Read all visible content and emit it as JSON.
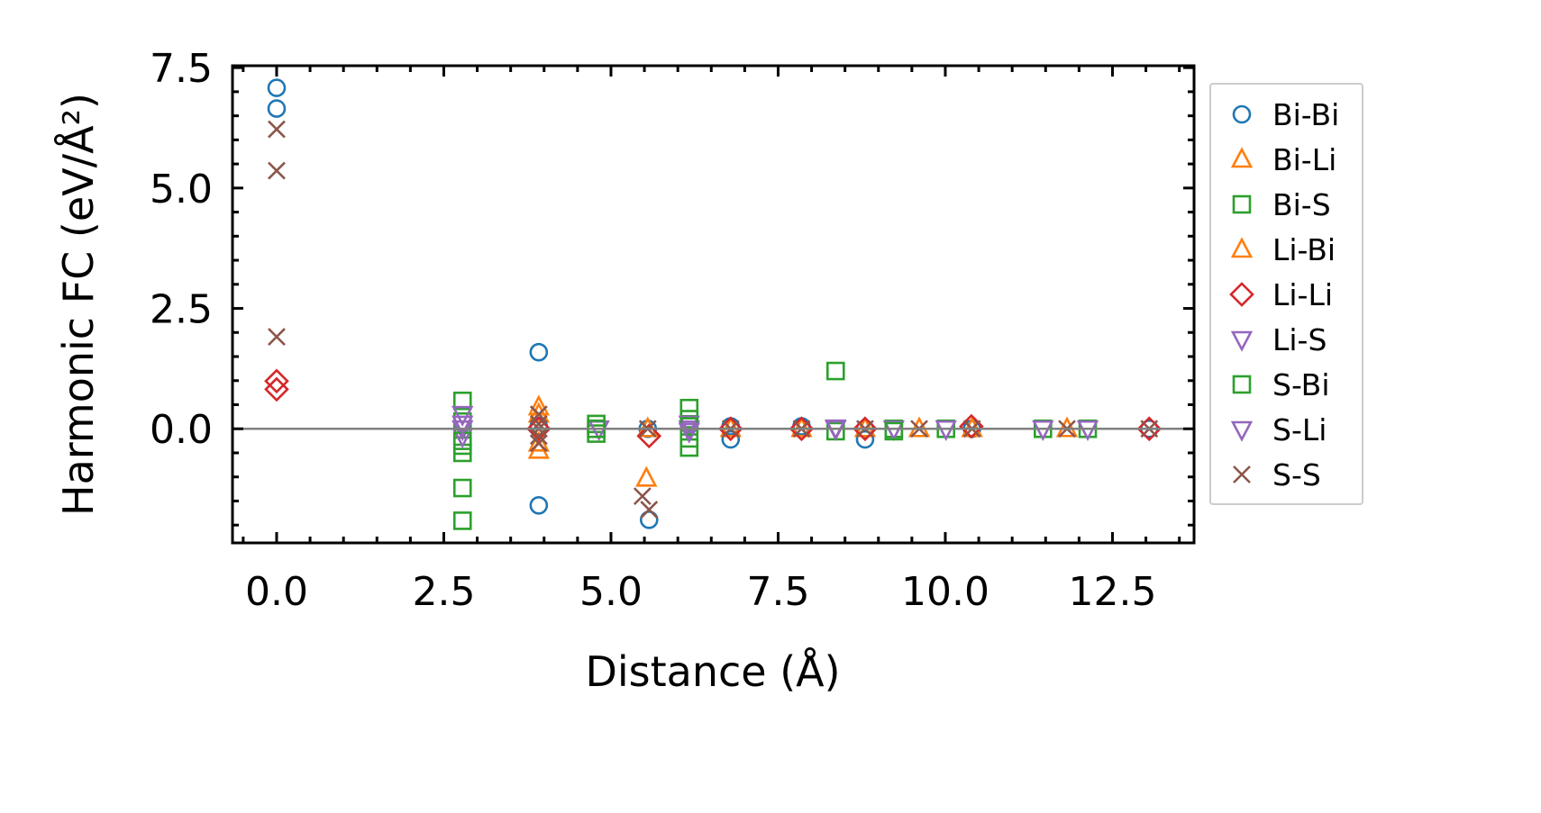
{
  "chart_data": {
    "type": "scatter",
    "title": "",
    "xlabel": "Distance (Å)",
    "ylabel": "Harmonic FC (eV/Å²)",
    "xlim": [
      -0.66,
      13.72
    ],
    "ylim": [
      -2.37,
      7.54
    ],
    "xticks": [
      0.0,
      2.5,
      5.0,
      7.5,
      10.0,
      12.5
    ],
    "xtick_labels": [
      "0.0",
      "2.5",
      "5.0",
      "7.5",
      "10.0",
      "12.5"
    ],
    "yticks": [
      0.0,
      2.5,
      5.0,
      7.5
    ],
    "ytick_labels": [
      "0.0",
      "2.5",
      "5.0",
      "7.5"
    ],
    "minor_tick_step": 0.5,
    "grid": false,
    "zero_line": {
      "y": 0,
      "color": "#808080"
    },
    "legend_position": "outside-right",
    "series": [
      {
        "name": "Bi-Bi",
        "marker": "circle",
        "color": "#1f77b4",
        "points": [
          [
            0,
            7.08
          ],
          [
            0,
            6.65
          ],
          [
            3.92,
            1.59
          ],
          [
            3.92,
            -1.59
          ],
          [
            3.92,
            0.05
          ],
          [
            5.57,
            -1.89
          ],
          [
            5.55,
            0.0
          ],
          [
            6.79,
            -0.22
          ],
          [
            6.79,
            0.05
          ],
          [
            7.85,
            0.05
          ],
          [
            8.8,
            -0.22
          ],
          [
            8.8,
            0.0
          ],
          [
            10.4,
            0.0
          ],
          [
            13.05,
            0.0
          ]
        ]
      },
      {
        "name": "Bi-Li",
        "marker": "triangle-up",
        "color": "#ff7f0e",
        "points": [
          [
            3.92,
            0.45
          ],
          [
            3.92,
            -0.45
          ],
          [
            5.53,
            -1.03
          ],
          [
            5.55,
            0.0
          ],
          [
            7.85,
            0.0
          ],
          [
            9.61,
            0.0
          ],
          [
            11.82,
            0.0
          ]
        ]
      },
      {
        "name": "Bi-S",
        "marker": "square",
        "color": "#2ca02c",
        "points": [
          [
            2.78,
            0.58
          ],
          [
            2.78,
            0.15
          ],
          [
            2.78,
            -0.35
          ],
          [
            2.78,
            -0.5
          ],
          [
            2.78,
            -1.23
          ],
          [
            2.78,
            -1.91
          ],
          [
            4.78,
            0.1
          ],
          [
            4.78,
            -0.1
          ],
          [
            6.17,
            0.43
          ],
          [
            6.17,
            0.2
          ],
          [
            6.17,
            -0.2
          ],
          [
            6.17,
            -0.39
          ],
          [
            8.36,
            1.2
          ],
          [
            8.36,
            -0.05
          ],
          [
            9.23,
            0.0
          ],
          [
            10.01,
            0.0
          ],
          [
            11.46,
            0.0
          ],
          [
            12.13,
            0.0
          ]
        ]
      },
      {
        "name": "Li-Bi",
        "marker": "triangle-up",
        "color": "#ff7f0e",
        "points": [
          [
            3.92,
            0.3
          ],
          [
            3.92,
            -0.3
          ],
          [
            6.79,
            0.0
          ],
          [
            8.8,
            0.0
          ],
          [
            10.4,
            0.0
          ]
        ]
      },
      {
        "name": "Li-Li",
        "marker": "diamond",
        "color": "#d62728",
        "points": [
          [
            0,
            0.99
          ],
          [
            0,
            0.82
          ],
          [
            3.92,
            0.0
          ],
          [
            5.57,
            -0.15
          ],
          [
            6.79,
            0.0
          ],
          [
            7.85,
            0.0
          ],
          [
            8.8,
            0.0
          ],
          [
            10.39,
            0.05
          ],
          [
            13.05,
            0.0
          ]
        ]
      },
      {
        "name": "Li-S",
        "marker": "triangle-down",
        "color": "#9467bd",
        "points": [
          [
            2.78,
            0.3
          ],
          [
            2.78,
            0.0
          ],
          [
            2.78,
            -0.15
          ],
          [
            4.82,
            0.0
          ],
          [
            6.17,
            0.1
          ],
          [
            6.17,
            0.0
          ],
          [
            8.36,
            0.0
          ],
          [
            9.23,
            0.0
          ],
          [
            10.01,
            0.0
          ],
          [
            11.46,
            0.0
          ],
          [
            12.13,
            0.0
          ]
        ]
      },
      {
        "name": "S-Bi",
        "marker": "square",
        "color": "#2ca02c",
        "points": [
          [
            2.78,
            -0.25
          ],
          [
            4.78,
            0.0
          ],
          [
            6.17,
            0.05
          ],
          [
            9.23,
            -0.05
          ]
        ]
      },
      {
        "name": "S-Li",
        "marker": "triangle-down",
        "color": "#9467bd",
        "points": [
          [
            2.78,
            0.1
          ],
          [
            6.17,
            -0.05
          ],
          [
            8.36,
            0.02
          ]
        ]
      },
      {
        "name": "S-S",
        "marker": "x",
        "color": "#8c564b",
        "points": [
          [
            0,
            6.22
          ],
          [
            0,
            5.36
          ],
          [
            0,
            1.91
          ],
          [
            3.92,
            0.3
          ],
          [
            3.92,
            0.1
          ],
          [
            3.92,
            0.0
          ],
          [
            3.92,
            -0.15
          ],
          [
            3.92,
            -0.3
          ],
          [
            5.55,
            0.0
          ],
          [
            5.47,
            -1.4
          ],
          [
            5.57,
            -1.68
          ],
          [
            6.79,
            0.0
          ],
          [
            7.85,
            0.0
          ],
          [
            8.8,
            0.0
          ],
          [
            9.61,
            0.0
          ],
          [
            10.4,
            0.0
          ],
          [
            11.82,
            0.0
          ],
          [
            13.05,
            0.0
          ]
        ]
      }
    ]
  }
}
